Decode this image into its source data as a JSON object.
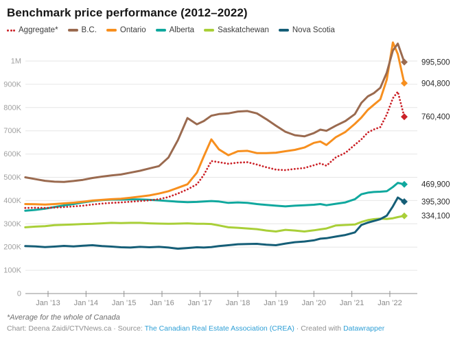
{
  "header": {
    "title": "Benchmark price performance (2012–2022)"
  },
  "legend": [
    {
      "label": "Aggregate*",
      "color": "#cb2127",
      "style": "dotted"
    },
    {
      "label": "B.C.",
      "color": "#9a6a4f",
      "style": "line"
    },
    {
      "label": "Ontario",
      "color": "#f78f1e",
      "style": "line"
    },
    {
      "label": "Alberta",
      "color": "#10a89e",
      "style": "line"
    },
    {
      "label": "Saskatchewan",
      "color": "#a9cf38",
      "style": "line"
    },
    {
      "label": "Nova Scotia",
      "color": "#155e77",
      "style": "line"
    }
  ],
  "chart_data": {
    "type": "line",
    "title": "Benchmark price performance (2012–2022)",
    "xlabel": "",
    "ylabel": "",
    "units": "CAD; values stored in thousands (K)",
    "ylim": [
      0,
      1100000
    ],
    "grid": "horizontal",
    "legend_position": "top",
    "y_ticks": [
      {
        "v": 0,
        "label": "0"
      },
      {
        "v": 100,
        "label": "100K"
      },
      {
        "v": 200,
        "label": "200K"
      },
      {
        "v": 300,
        "label": "300K"
      },
      {
        "v": 400,
        "label": "400K"
      },
      {
        "v": 500,
        "label": "500K"
      },
      {
        "v": 600,
        "label": "600K"
      },
      {
        "v": 700,
        "label": "700K"
      },
      {
        "v": 800,
        "label": "800K"
      },
      {
        "v": 900,
        "label": "900K"
      },
      {
        "v": 1000,
        "label": "1M"
      }
    ],
    "x_ticks": [
      {
        "year": 2013,
        "label": "Jan ’13"
      },
      {
        "year": 2014,
        "label": "Jan ’14"
      },
      {
        "year": 2015,
        "label": "Jan ’15"
      },
      {
        "year": 2016,
        "label": "Jan ’16"
      },
      {
        "year": 2017,
        "label": "Jan ’17"
      },
      {
        "year": 2018,
        "label": "Jan ’18"
      },
      {
        "year": 2019,
        "label": "Jan ’19"
      },
      {
        "year": 2020,
        "label": "Jan ’20"
      },
      {
        "year": 2021,
        "label": "Jan ’21"
      },
      {
        "year": 2022,
        "label": "Jan ’22"
      }
    ],
    "x": [
      2012.4,
      2012.67,
      2012.92,
      2013.17,
      2013.42,
      2013.67,
      2013.92,
      2014.17,
      2014.42,
      2014.67,
      2014.92,
      2015.17,
      2015.42,
      2015.67,
      2015.92,
      2016.17,
      2016.42,
      2016.67,
      2016.92,
      2017.1,
      2017.3,
      2017.5,
      2017.75,
      2018.0,
      2018.25,
      2018.5,
      2018.75,
      2019.0,
      2019.25,
      2019.5,
      2019.75,
      2020.0,
      2020.17,
      2020.33,
      2020.58,
      2020.83,
      2021.08,
      2021.25,
      2021.42,
      2021.58,
      2021.75,
      2021.92,
      2022.08,
      2022.21,
      2022.38
    ],
    "draw_order": [
      4,
      5,
      3,
      0,
      2,
      1
    ],
    "series": [
      {
        "name": "Aggregate*",
        "color": "#cb2127",
        "dotted": true,
        "end_label": "760,400",
        "values_k": [
          368,
          369,
          368,
          370,
          372,
          375,
          378,
          383,
          387,
          390,
          392,
          395,
          398,
          401,
          406,
          415,
          430,
          448,
          470,
          510,
          570,
          565,
          558,
          563,
          565,
          555,
          543,
          533,
          531,
          536,
          540,
          552,
          560,
          550,
          586,
          605,
          640,
          663,
          693,
          706,
          716,
          770,
          840,
          868,
          760.4
        ]
      },
      {
        "name": "B.C.",
        "color": "#9a6a4f",
        "dotted": false,
        "end_label": "995,500",
        "values_k": [
          500,
          492,
          485,
          481,
          480,
          484,
          489,
          497,
          503,
          508,
          512,
          520,
          528,
          538,
          548,
          585,
          660,
          755,
          728,
          742,
          765,
          772,
          775,
          783,
          785,
          775,
          750,
          722,
          696,
          681,
          676,
          690,
          705,
          700,
          722,
          742,
          772,
          820,
          848,
          862,
          885,
          950,
          1045,
          1075,
          995.5
        ]
      },
      {
        "name": "Ontario",
        "color": "#f78f1e",
        "dotted": false,
        "end_label": "904,800",
        "values_k": [
          385,
          384,
          383,
          385,
          388,
          391,
          395,
          400,
          403,
          406,
          408,
          412,
          417,
          422,
          430,
          440,
          455,
          470,
          520,
          590,
          663,
          620,
          595,
          612,
          614,
          604,
          604,
          606,
          612,
          618,
          628,
          648,
          654,
          639,
          673,
          695,
          730,
          757,
          790,
          812,
          835,
          920,
          1080,
          1030,
          904.8
        ]
      },
      {
        "name": "Alberta",
        "color": "#10a89e",
        "dotted": false,
        "end_label": "469,900",
        "values_k": [
          356,
          360,
          365,
          372,
          379,
          385,
          392,
          398,
          402,
          404,
          404,
          405,
          405,
          403,
          401,
          398,
          395,
          393,
          394,
          396,
          398,
          396,
          390,
          392,
          390,
          385,
          381,
          378,
          375,
          378,
          380,
          382,
          385,
          380,
          386,
          392,
          406,
          427,
          434,
          437,
          438,
          440,
          458,
          476,
          469.9
        ]
      },
      {
        "name": "Saskatchewan",
        "color": "#a9cf38",
        "dotted": false,
        "end_label": "334,100",
        "values_k": [
          285,
          288,
          290,
          294,
          296,
          297,
          299,
          300,
          302,
          304,
          303,
          304,
          304,
          302,
          301,
          300,
          301,
          302,
          300,
          300,
          299,
          293,
          285,
          283,
          280,
          277,
          271,
          267,
          274,
          271,
          267,
          272,
          276,
          280,
          293,
          295,
          297,
          308,
          316,
          320,
          322,
          321,
          324,
          329,
          334.1
        ]
      },
      {
        "name": "Nova Scotia",
        "color": "#155e77",
        "dotted": false,
        "end_label": "395,300",
        "values_k": [
          204,
          203,
          200,
          202,
          205,
          203,
          206,
          208,
          204,
          202,
          199,
          198,
          201,
          199,
          201,
          198,
          193,
          196,
          199,
          198,
          200,
          204,
          208,
          212,
          213,
          214,
          210,
          208,
          215,
          221,
          224,
          229,
          236,
          238,
          245,
          252,
          263,
          295,
          305,
          312,
          320,
          335,
          375,
          413,
          395.3
        ]
      }
    ]
  },
  "footer": {
    "footnote": "*Average for the whole of Canada",
    "credit": {
      "chart_by": "Chart: Deena Zaidi/CTVNews.ca",
      "sep1": " · ",
      "source_prefix": "Source: ",
      "source_link": "The Canadian Real Estate Association (CREA)",
      "sep2": " · ",
      "created_prefix": "Created with ",
      "created_link": "Datawrapper"
    }
  }
}
